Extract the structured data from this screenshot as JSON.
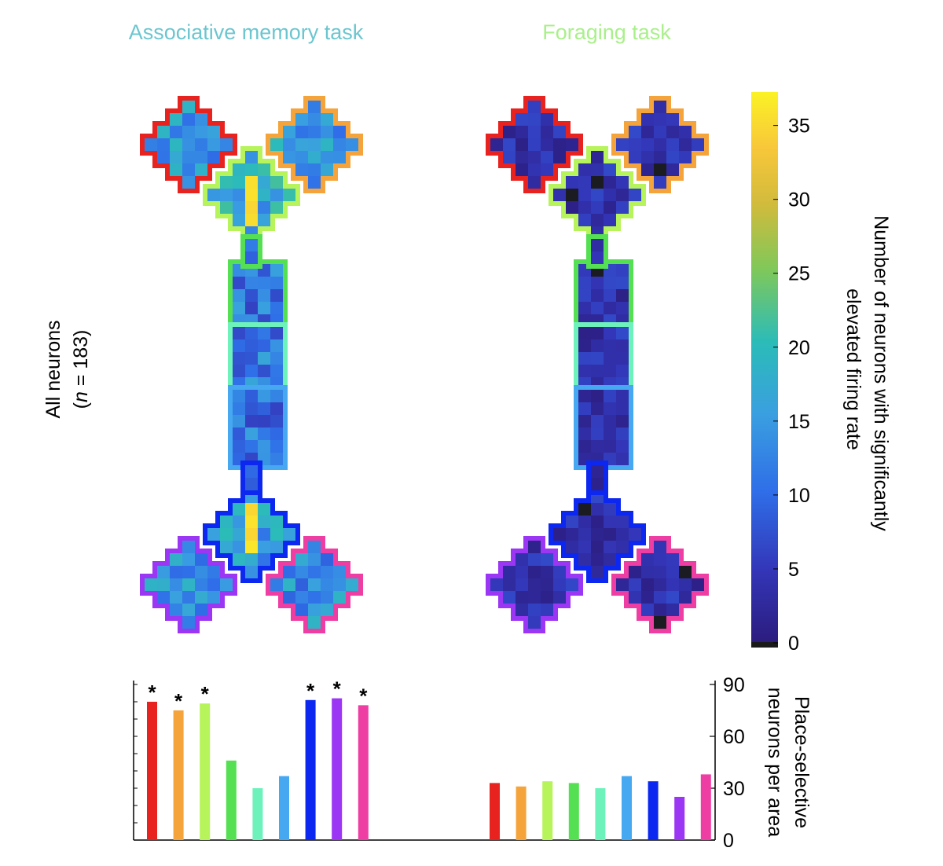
{
  "titles": {
    "left": "Associative memory task",
    "right": "Foraging task",
    "left_color": "#6cc6cf",
    "right_color": "#a9f08a"
  },
  "row_label": {
    "line1": "All neurons",
    "line2_italic": "n",
    "line2_rest": " = 183)",
    "line2_open": "("
  },
  "colorbar": {
    "label_line1": "Number of neurons with significantly",
    "label_line2": "elevated firing rate",
    "ticks": [
      "0",
      "5",
      "10",
      "15",
      "20",
      "25",
      "30",
      "35"
    ],
    "min": 0,
    "max": 37
  },
  "areas": [
    {
      "name": "top-left-arm",
      "color": "#e8231f"
    },
    {
      "name": "top-right-arm",
      "color": "#f5a43b"
    },
    {
      "name": "top-junction",
      "color": "#b7f35a"
    },
    {
      "name": "corridor-1",
      "color": "#55e053"
    },
    {
      "name": "corridor-2",
      "color": "#6ef2bb"
    },
    {
      "name": "corridor-3",
      "color": "#45a8f0"
    },
    {
      "name": "bottom-junction",
      "color": "#0b27f0"
    },
    {
      "name": "bottom-left-arm",
      "color": "#9b36f4"
    },
    {
      "name": "bottom-right-arm",
      "color": "#ee3ea3"
    }
  ],
  "chart_data": [
    {
      "type": "bar",
      "title": "Associative memory task",
      "ylabel": "Place-selective neurons per area",
      "ylim": [
        0,
        90
      ],
      "yticks": [
        "0",
        "30",
        "60",
        "90"
      ],
      "values": [
        80,
        75,
        79,
        46,
        30,
        37,
        81,
        82,
        78
      ],
      "significant": [
        true,
        true,
        true,
        false,
        false,
        false,
        true,
        true,
        true
      ],
      "star": "*"
    },
    {
      "type": "bar",
      "title": "Foraging task",
      "ylabel": "Place-selective neurons per area",
      "ylim": [
        0,
        90
      ],
      "values": [
        33,
        31,
        34,
        33,
        30,
        37,
        34,
        25,
        38
      ]
    }
  ]
}
